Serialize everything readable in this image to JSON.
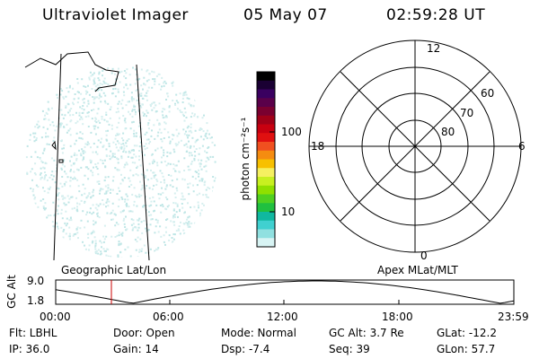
{
  "header": {
    "instrument": "Ultraviolet Imager",
    "date": "05 May 07",
    "time": "02:59:28 UT"
  },
  "colorbar": {
    "label": "photon cm⁻²s⁻¹",
    "ticks": [
      "100",
      "10"
    ],
    "colors": [
      "#000000",
      "#1a0033",
      "#3a0060",
      "#5a004a",
      "#7a0030",
      "#a00018",
      "#c80010",
      "#e01010",
      "#f05020",
      "#f58c10",
      "#f7c000",
      "#f5f060",
      "#c8f020",
      "#90e000",
      "#50d020",
      "#20c040",
      "#10b8a0",
      "#40d0d0",
      "#90e0e0",
      "#d8f4f4"
    ]
  },
  "left_panel": {
    "title": "Geographic Lat/Lon"
  },
  "polar_plot": {
    "title": "Apex MLat/MLT",
    "mlt_labels": {
      "top": "12",
      "left": "18",
      "right": "6",
      "bottom": "0"
    },
    "lat_labels": [
      "60",
      "70",
      "80"
    ]
  },
  "altitude_strip": {
    "axis_label": "GC Alt",
    "y_ticks": [
      "9.0",
      "1.8"
    ],
    "x_ticks": [
      "00:00",
      "06:00",
      "12:00",
      "18:00",
      "23:59"
    ],
    "marker_color": "#cc0000"
  },
  "info": {
    "flt": "Flt: LBHL",
    "ip": "IP: 36.0",
    "door": "Door: Open",
    "gain": "Gain: 14",
    "mode": "Mode: Normal",
    "dsp": "Dsp:    -7.4",
    "gc_alt": "GC Alt: 3.7 Re",
    "seq": "Seq: 39",
    "glat": "GLat:  -12.2",
    "glon": "GLon:   57.7"
  }
}
